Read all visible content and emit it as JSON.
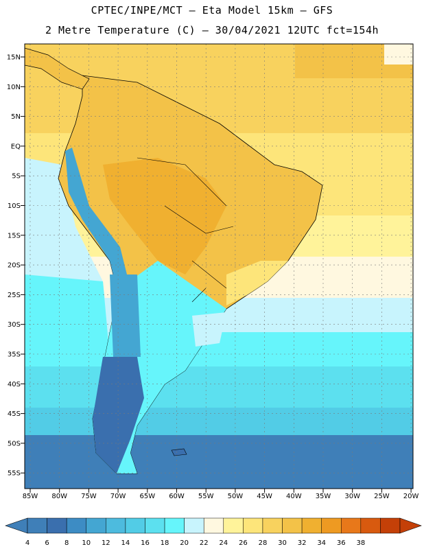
{
  "title": {
    "line1": "CPTEC/INPE/MCT  –   Eta Model 15km  –  GFS",
    "line2": "2 Metre Temperature (C) – 30/04/2021 12UTC fct=154h"
  },
  "axes": {
    "lat_labels": [
      "15N",
      "10N",
      "5N",
      "EQ",
      "5S",
      "10S",
      "15S",
      "20S",
      "25S",
      "30S",
      "35S",
      "40S",
      "45S",
      "50S",
      "55S"
    ],
    "lon_labels": [
      "85W",
      "80W",
      "75W",
      "70W",
      "65W",
      "60W",
      "55W",
      "50W",
      "45W",
      "40W",
      "35W",
      "30W",
      "25W",
      "20W"
    ]
  },
  "colorbar": {
    "ticks": [
      "4",
      "6",
      "8",
      "10",
      "12",
      "14",
      "16",
      "18",
      "20",
      "22",
      "24",
      "26",
      "28",
      "30",
      "32",
      "34",
      "36",
      "38"
    ],
    "colors": [
      "#3f7fb8",
      "#3a6fae",
      "#3d8cc4",
      "#44a6d2",
      "#4dbbde",
      "#52cce6",
      "#5ce0ef",
      "#66f5fb",
      "#c8f4fd",
      "#fff8e0",
      "#fff39a",
      "#fde57a",
      "#f8d25e",
      "#f3c248",
      "#f0b030",
      "#ee9a22",
      "#e8781a",
      "#d85a0f",
      "#c44008"
    ],
    "arrow_low": "#3f7fb8",
    "arrow_high": "#c44008"
  }
}
